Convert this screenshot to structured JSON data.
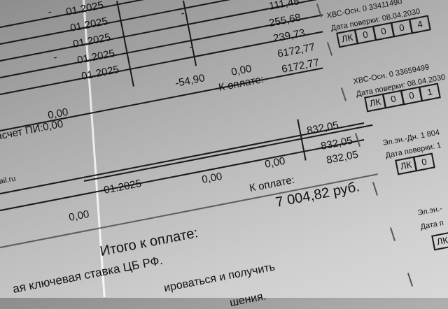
{
  "left_table": {
    "periods": [
      "01.2025",
      "01.2025",
      "01.2025",
      "01.2025",
      "01.2025"
    ],
    "amounts": [
      "111,48",
      "255,68",
      "239,73",
      "6172,77",
      "6172,77"
    ],
    "dash": "-",
    "recalc": "-54,90",
    "zero": "0,00",
    "pay_label": "К оплате:",
    "sum_zero": "0,00",
    "pi_recalc": "асчет ПИ:0,00"
  },
  "second_table": {
    "amounts": [
      "832,05",
      "832,05",
      "832,05"
    ],
    "zero1": "0,00",
    "zero2": "0,00",
    "period": "01.2025",
    "pay_label": "К оплате:",
    "email": "ail.ru",
    "zero3": "0,00"
  },
  "total": {
    "label": "Итого к оплате:",
    "value": "7 004,82 руб."
  },
  "footer": {
    "line1": "ая ключевая ставка ЦБ РФ.",
    "line2": "ироваться и получить",
    "line3": "шения."
  },
  "meters": [
    {
      "title": "ХВС-Осн. 0 33411490",
      "check": "Дата поверки: 08.04.2030",
      "lk": "ЛК",
      "digits": [
        "0",
        "0",
        "0",
        "4"
      ]
    },
    {
      "title": "ХВС-Осн. 0 33659499",
      "check": "Дата поверки: 08.04.2030",
      "lk": "ЛК",
      "digits": [
        "0",
        "0",
        "1"
      ]
    },
    {
      "title": "Эл.эн.-Дн. 1 804",
      "check": "Дата поверки: 1",
      "lk": "ЛК",
      "digits": [
        "0"
      ]
    },
    {
      "title": "Эл.эн.-",
      "check": "Дата п",
      "lk": "ЛК",
      "digits": []
    }
  ]
}
